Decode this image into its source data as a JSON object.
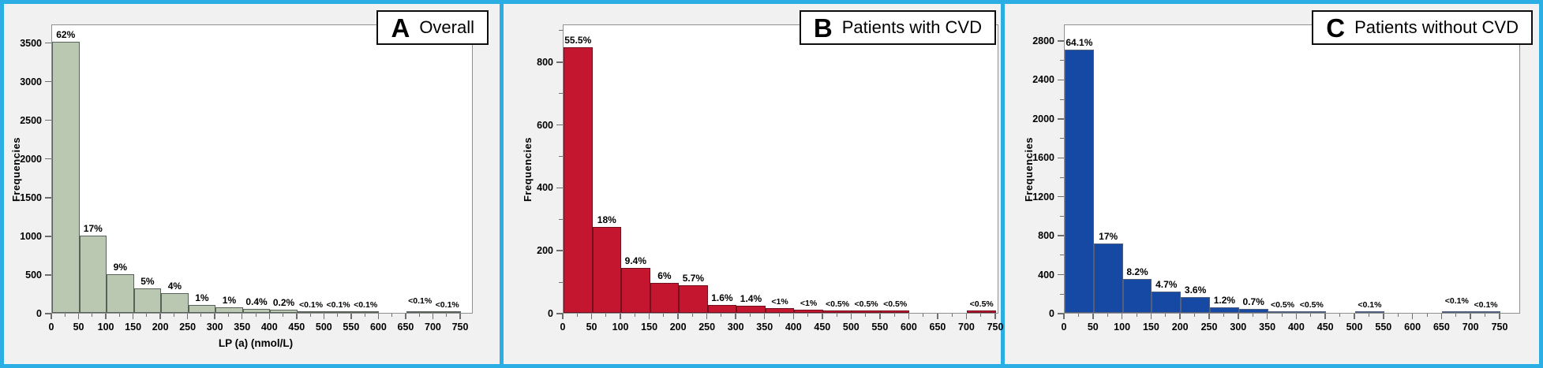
{
  "figure": {
    "frame_color": "#2BAEE4",
    "panel_background": "#F1F1F1",
    "plot_background": "#FFFFFF",
    "axis_color": "#909090",
    "tick_color": "#6E6E6E",
    "text_color": "#000000"
  },
  "chart_data": [
    {
      "type": "bar",
      "panel_letter": "A",
      "title": "Overall",
      "ylabel": "Frequencies",
      "xlabel": "LP (a) (nmol/L)",
      "bar_color": "#BAC8B2",
      "bar_border": "#58625A",
      "ylim": [
        0,
        3740
      ],
      "y_ticks": [
        0,
        500,
        1000,
        1500,
        2000,
        2500,
        3000,
        3500
      ],
      "y_minor_step": 0,
      "xlim": [
        0,
        750
      ],
      "x_ticks": [
        0,
        50,
        100,
        150,
        200,
        250,
        300,
        350,
        400,
        450,
        500,
        550,
        600,
        650,
        700,
        750
      ],
      "x_minor_step": 25,
      "legend": "none",
      "grid": "off",
      "bins": [
        {
          "x0": 0,
          "x1": 50,
          "value": 3510,
          "label": "62%"
        },
        {
          "x0": 50,
          "x1": 100,
          "value": 1000,
          "label": "17%"
        },
        {
          "x0": 100,
          "x1": 150,
          "value": 500,
          "label": "9%"
        },
        {
          "x0": 150,
          "x1": 200,
          "value": 320,
          "label": "5%"
        },
        {
          "x0": 200,
          "x1": 250,
          "value": 255,
          "label": "4%"
        },
        {
          "x0": 250,
          "x1": 300,
          "value": 100,
          "label": "1%"
        },
        {
          "x0": 300,
          "x1": 350,
          "value": 75,
          "label": "1%"
        },
        {
          "x0": 350,
          "x1": 400,
          "value": 55,
          "label": "0.4%"
        },
        {
          "x0": 400,
          "x1": 450,
          "value": 40,
          "label": "0.2%"
        },
        {
          "x0": 450,
          "x1": 500,
          "value": 25,
          "label": "<0.1%"
        },
        {
          "x0": 500,
          "x1": 550,
          "value": 25,
          "label": "<0.1%"
        },
        {
          "x0": 550,
          "x1": 600,
          "value": 25,
          "label": "<0.1%"
        },
        {
          "x0": 650,
          "x1": 700,
          "value": 25,
          "label": "<0.1%",
          "label_dy": 5
        },
        {
          "x0": 700,
          "x1": 750,
          "value": 25,
          "label": "<0.1%"
        }
      ]
    },
    {
      "type": "bar",
      "panel_letter": "B",
      "title": "Patients with CVD",
      "ylabel": "Frequencies",
      "xlabel": "",
      "bar_color": "#C4162F",
      "bar_border": "#73101F",
      "ylim": [
        0,
        920
      ],
      "y_ticks": [
        0,
        200,
        400,
        600,
        800
      ],
      "y_minor_step": 100,
      "xlim": [
        0,
        750
      ],
      "x_ticks": [
        0,
        50,
        100,
        150,
        200,
        250,
        300,
        350,
        400,
        450,
        500,
        550,
        600,
        650,
        700,
        750
      ],
      "x_minor_step": 25,
      "legend": "none",
      "grid": "off",
      "bins": [
        {
          "x0": 0,
          "x1": 50,
          "value": 845,
          "label": "55.5%"
        },
        {
          "x0": 50,
          "x1": 100,
          "value": 272,
          "label": "18%"
        },
        {
          "x0": 100,
          "x1": 150,
          "value": 142,
          "label": "9.4%"
        },
        {
          "x0": 150,
          "x1": 200,
          "value": 95,
          "label": "6%"
        },
        {
          "x0": 200,
          "x1": 250,
          "value": 88,
          "label": "5.7%"
        },
        {
          "x0": 250,
          "x1": 300,
          "value": 26,
          "label": "1.6%"
        },
        {
          "x0": 300,
          "x1": 350,
          "value": 22,
          "label": "1.4%"
        },
        {
          "x0": 350,
          "x1": 400,
          "value": 14,
          "label": "<1%"
        },
        {
          "x0": 400,
          "x1": 450,
          "value": 11,
          "label": "<1%"
        },
        {
          "x0": 450,
          "x1": 500,
          "value": 8,
          "label": "<0.5%"
        },
        {
          "x0": 500,
          "x1": 550,
          "value": 8,
          "label": "<0.5%"
        },
        {
          "x0": 550,
          "x1": 600,
          "value": 8,
          "label": "<0.5%"
        },
        {
          "x0": 700,
          "x1": 750,
          "value": 8,
          "label": "<0.5%"
        }
      ]
    },
    {
      "type": "bar",
      "panel_letter": "C",
      "title": "Patients without CVD",
      "ylabel": "Frequencies",
      "xlabel": "",
      "bar_color": "#1549A4",
      "bar_border": "#51607C",
      "ylim": [
        0,
        2970
      ],
      "y_ticks": [
        0,
        400,
        800,
        1200,
        1600,
        2000,
        2400,
        2800
      ],
      "y_minor_step": 200,
      "xlim": [
        0,
        750
      ],
      "x_ticks": [
        0,
        50,
        100,
        150,
        200,
        250,
        300,
        350,
        400,
        450,
        500,
        550,
        600,
        650,
        700,
        750
      ],
      "x_minor_step": 25,
      "legend": "none",
      "grid": "off",
      "bins": [
        {
          "x0": 0,
          "x1": 50,
          "value": 2700,
          "label": "64.1%"
        },
        {
          "x0": 50,
          "x1": 100,
          "value": 715,
          "label": "17%"
        },
        {
          "x0": 100,
          "x1": 150,
          "value": 348,
          "label": "8.2%"
        },
        {
          "x0": 150,
          "x1": 200,
          "value": 215,
          "label": "4.7%"
        },
        {
          "x0": 200,
          "x1": 250,
          "value": 160,
          "label": "3.6%"
        },
        {
          "x0": 250,
          "x1": 300,
          "value": 57,
          "label": "1.2%"
        },
        {
          "x0": 300,
          "x1": 350,
          "value": 37,
          "label": "0.7%"
        },
        {
          "x0": 350,
          "x1": 400,
          "value": 16,
          "label": "<0.5%"
        },
        {
          "x0": 400,
          "x1": 450,
          "value": 16,
          "label": "<0.5%"
        },
        {
          "x0": 500,
          "x1": 550,
          "value": 10,
          "label": "<0.1%"
        },
        {
          "x0": 650,
          "x1": 700,
          "value": 10,
          "label": "<0.1%",
          "label_dy": 5
        },
        {
          "x0": 700,
          "x1": 750,
          "value": 10,
          "label": "<0.1%"
        }
      ]
    }
  ]
}
